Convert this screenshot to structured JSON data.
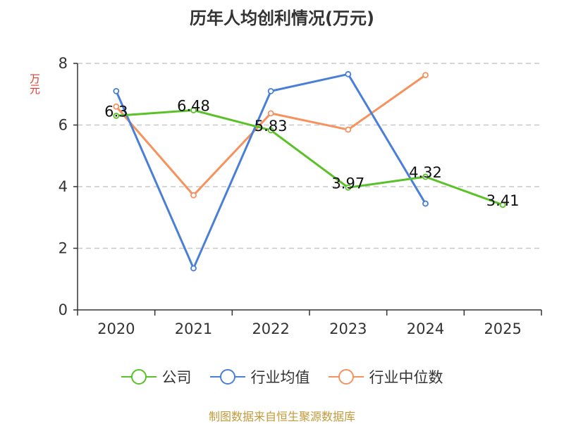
{
  "chart_data": {
    "type": "line",
    "title": "历年人均创利情况(万元)",
    "ylabel": "万元",
    "categories": [
      "2020",
      "2021",
      "2022",
      "2023",
      "2024",
      "2025"
    ],
    "ylim": [
      0,
      8
    ],
    "yticks": [
      0,
      2,
      4,
      6,
      8
    ],
    "grid": true,
    "legend_position": "bottom",
    "series": [
      {
        "name": "公司",
        "color": "#5ac228",
        "values": [
          6.3,
          6.48,
          5.83,
          3.97,
          4.32,
          3.41
        ],
        "labels": [
          "6.3",
          "6.48",
          "5.83",
          "3.97",
          "4.32",
          "3.41"
        ]
      },
      {
        "name": "行业均值",
        "color": "#4a7fd8",
        "values": [
          7.1,
          1.35,
          7.1,
          7.65,
          3.45,
          null
        ]
      },
      {
        "name": "行业中位数",
        "color": "#f5925e",
        "values": [
          6.6,
          3.72,
          6.38,
          5.85,
          7.62,
          null
        ]
      }
    ]
  },
  "footer": {
    "source": "制图数据来自恒生聚源数据库"
  }
}
